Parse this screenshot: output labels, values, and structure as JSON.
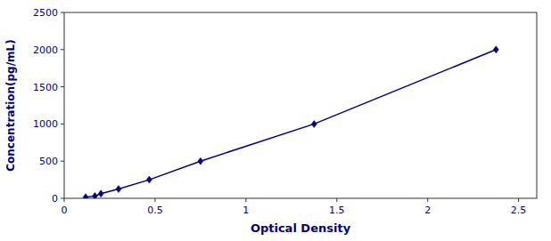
{
  "chart_data": {
    "type": "line",
    "xlabel": "Optical Density",
    "ylabel": "Concentration(pg/mL)",
    "x": [
      0.118,
      0.169,
      0.202,
      0.299,
      0.468,
      0.75,
      1.375,
      2.376
    ],
    "series": [
      {
        "color": "#00008B",
        "marker": "diamond",
        "line_style": "solid",
        "values": [
          15.6,
          31.2,
          62.5,
          125.0,
          250.0,
          500.0,
          1000.0,
          2000.0
        ]
      }
    ],
    "xlim": [
      0.0,
      2.6
    ],
    "ylim": [
      0,
      2500
    ],
    "xticks": [
      0,
      0.5,
      1,
      1.5,
      2,
      2.5
    ],
    "yticks": [
      0,
      500,
      1000,
      1500,
      2000,
      2500
    ]
  }
}
